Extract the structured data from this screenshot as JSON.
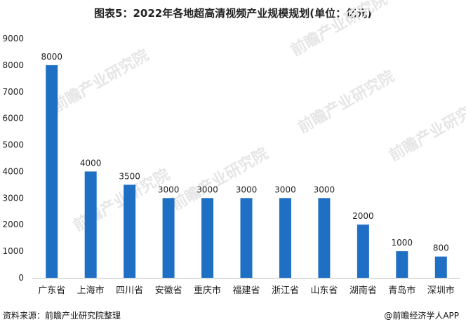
{
  "title": "图表5：2022年各地超高清视频产业规模规划(单位：亿元)",
  "footer": {
    "source": "资料来源：前瞻产业研究院整理",
    "brand": "@前瞻经济学人APP"
  },
  "watermark": "前瞻产业研究院",
  "colors": {
    "bar": "#1f6fc5",
    "axis": "#bfbfbf",
    "text": "#222222"
  },
  "chart_data": {
    "type": "bar",
    "title": "图表5：2022年各地超高清视频产业规模规划(单位：亿元)",
    "xlabel": "",
    "ylabel": "",
    "ylim": [
      0,
      9000
    ],
    "yticks": [
      0,
      1000,
      2000,
      3000,
      4000,
      5000,
      6000,
      7000,
      8000,
      9000
    ],
    "grid": false,
    "categories": [
      "广东省",
      "上海市",
      "四川省",
      "安徽省",
      "重庆市",
      "福建省",
      "浙江省",
      "山东省",
      "湖南省",
      "青岛市",
      "深圳市"
    ],
    "values": [
      8000,
      4000,
      3500,
      3000,
      3000,
      3000,
      3000,
      3000,
      2000,
      1000,
      800
    ],
    "data_labels": [
      "8000",
      "4000",
      "3500",
      "3000",
      "3000",
      "3000",
      "3000",
      "3000",
      "2000",
      "1000",
      "800"
    ]
  }
}
